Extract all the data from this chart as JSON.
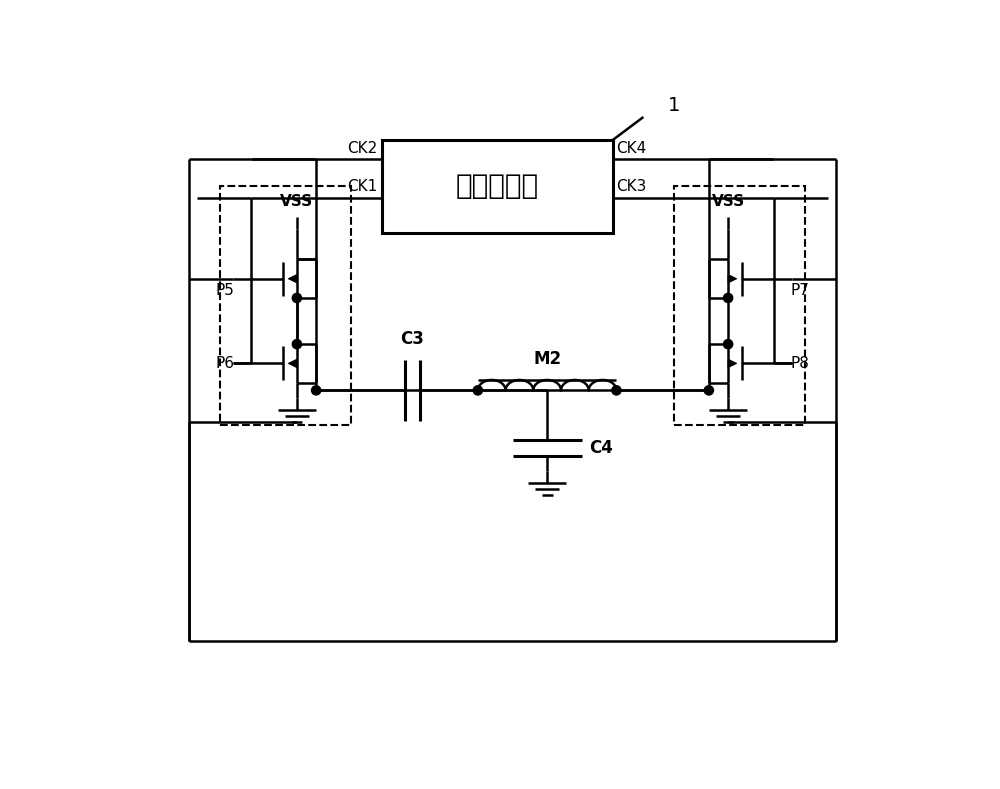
{
  "bg_color": "#ffffff",
  "line_color": "#000000",
  "box_label": "时序控制器",
  "box_label_ref": "1",
  "figsize": [
    10.0,
    7.89
  ],
  "dpi": 100,
  "xlim": [
    0,
    100
  ],
  "ylim": [
    0,
    78.9
  ]
}
